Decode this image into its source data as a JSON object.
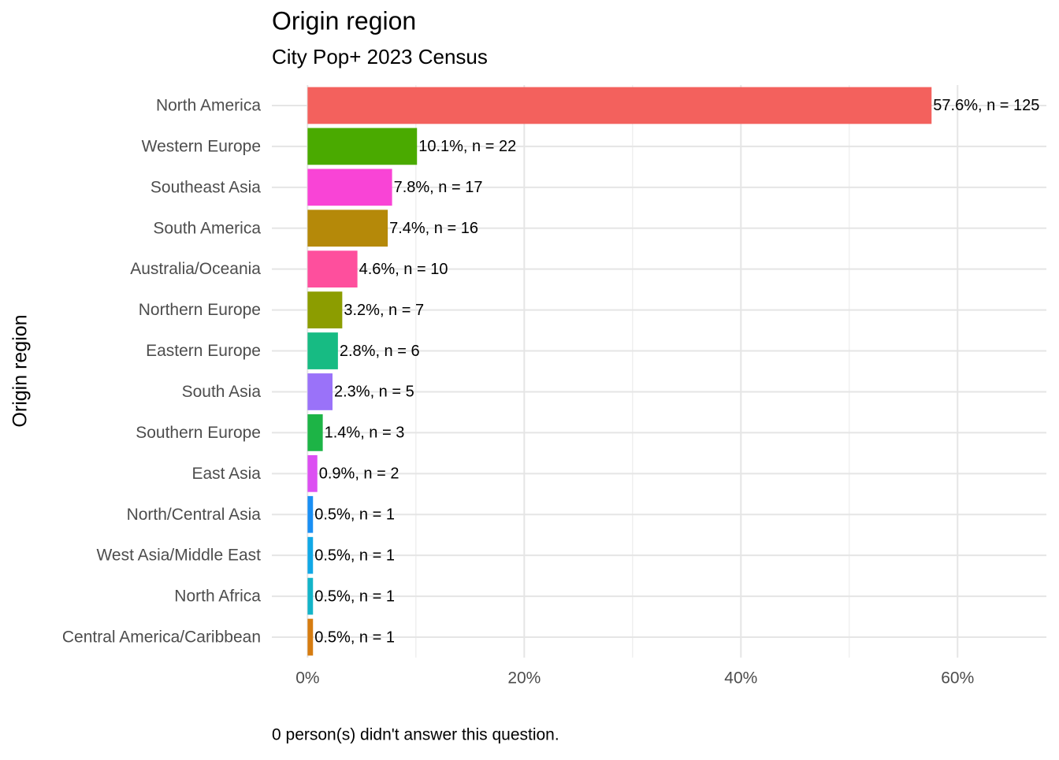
{
  "chart_data": {
    "type": "bar",
    "orientation": "horizontal",
    "title": "Origin region",
    "subtitle": "City Pop+ 2023 Census",
    "y_label": "Origin region",
    "caption": "0 person(s) didn't answer this question.",
    "categories": [
      "North America",
      "Western Europe",
      "Southeast Asia",
      "South America",
      "Australia/Oceania",
      "Northern Europe",
      "Eastern Europe",
      "South Asia",
      "Southern Europe",
      "East Asia",
      "North/Central Asia",
      "West Asia/Middle East",
      "North Africa",
      "Central America/Caribbean"
    ],
    "values": [
      57.6,
      10.1,
      7.8,
      7.4,
      4.6,
      3.2,
      2.8,
      2.3,
      1.4,
      0.9,
      0.5,
      0.5,
      0.5,
      0.5
    ],
    "value_labels": [
      "57.6%, n = 125",
      "10.1%, n = 22",
      "7.8%, n = 17",
      "7.4%, n = 16",
      "4.6%, n = 10",
      "3.2%, n = 7",
      "2.8%, n = 6",
      "2.3%, n = 5",
      "1.4%, n = 3",
      "0.9%, n = 2",
      "0.5%, n = 1",
      "0.5%, n = 1",
      "0.5%, n = 1",
      "0.5%, n = 1"
    ],
    "colors": [
      "#f3615d",
      "#4aaa00",
      "#f944d6",
      "#b58909",
      "#fe4f9d",
      "#8c9d00",
      "#17bb83",
      "#9a72f9",
      "#1db446",
      "#dc4ff2",
      "#198ff4",
      "#10a8e6",
      "#13b4c8",
      "#d67c10"
    ],
    "xlim": [
      -3.3,
      68.2
    ],
    "xticks": [
      {
        "value": 0,
        "label": "0%"
      },
      {
        "value": 20,
        "label": "20%"
      },
      {
        "value": 40,
        "label": "40%"
      },
      {
        "value": 60,
        "label": "60%"
      }
    ],
    "minor_xticks": [
      10,
      30,
      50
    ],
    "grid": true
  }
}
